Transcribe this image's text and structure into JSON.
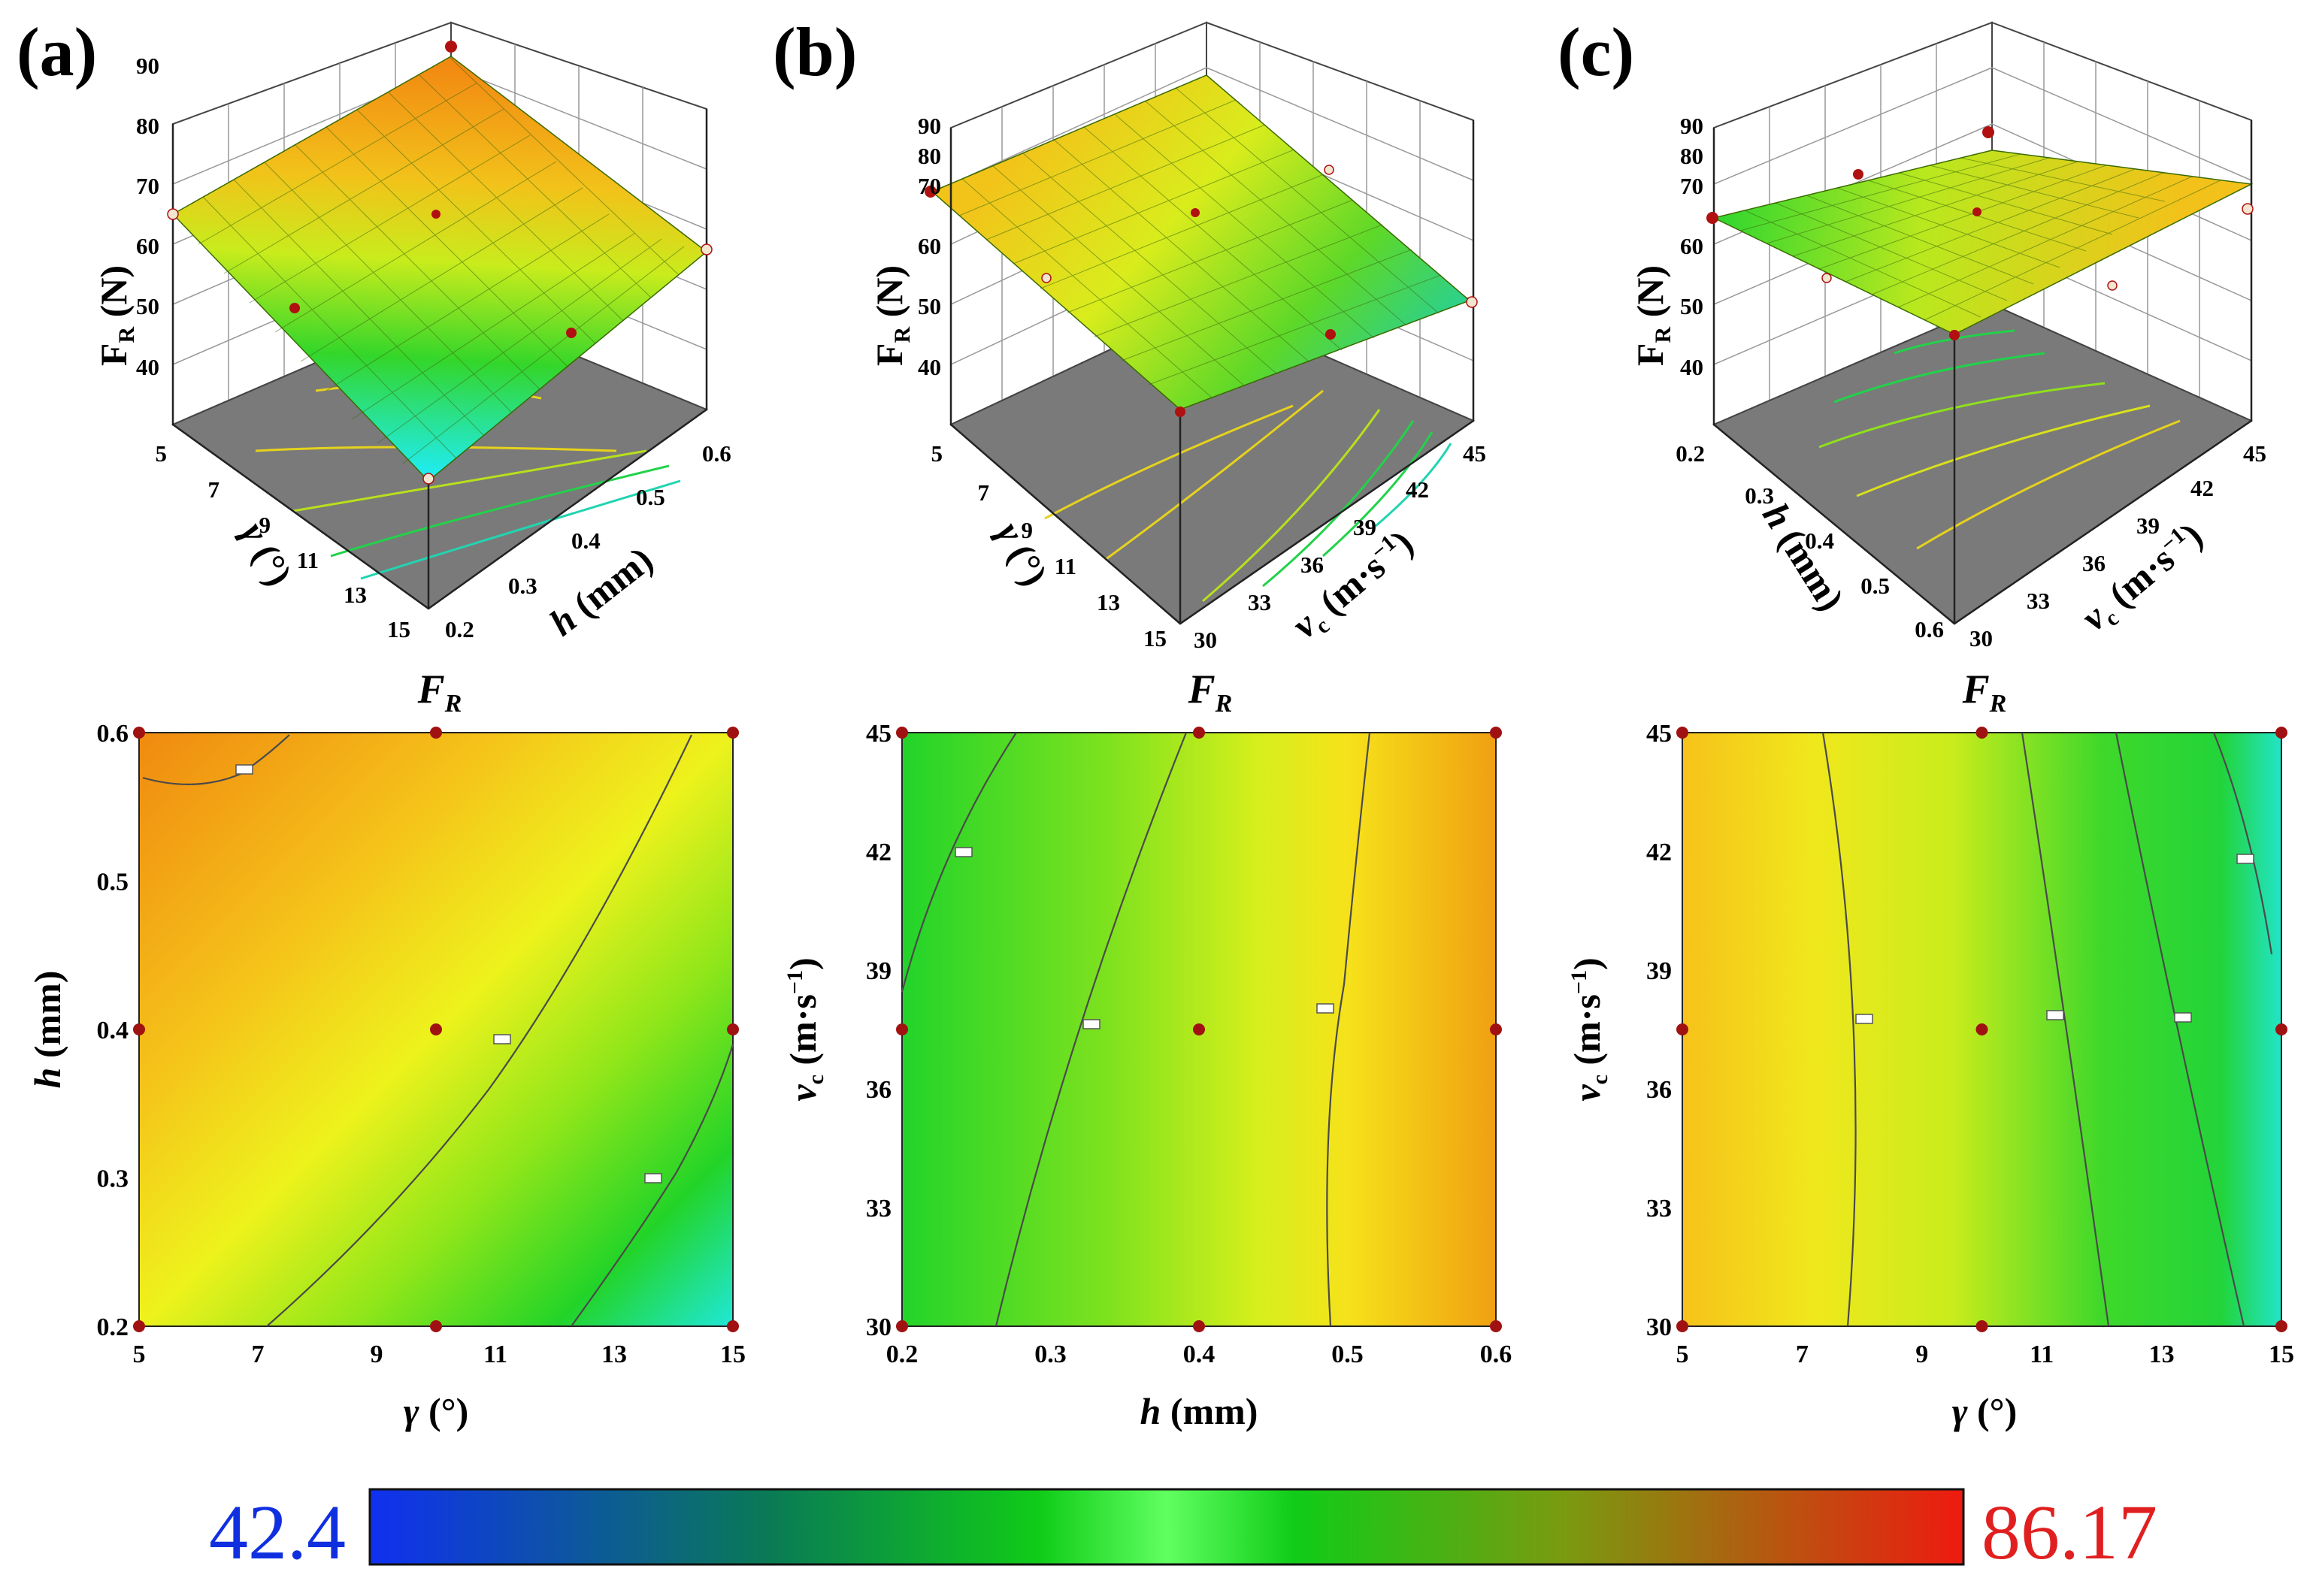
{
  "figure": {
    "panels": [
      {
        "tag": "(a)",
        "x_label_sym": "γ",
        "x_label_unit": " (°)",
        "y_label_sym": "h",
        "y_label_unit": " (mm)"
      },
      {
        "tag": "(b)",
        "x_label_sym": "h",
        "x_label_unit": " (mm)",
        "y_label_sym": "v",
        "y_label_sub": "c",
        "y_label_unit": " (m·s",
        "y_label_sup": "−1",
        "y_label_close": ")"
      },
      {
        "tag": "(c)",
        "x_label_sym": "γ",
        "x_label_unit": " (°)",
        "y_label_sym": "v",
        "y_label_sub": "c",
        "y_label_unit": " (m·s",
        "y_label_sup": "−1",
        "y_label_close": ")"
      }
    ],
    "response_label": {
      "main": "F",
      "sub": "R",
      "unit": " (N)"
    },
    "colorbar": {
      "min_label": "42.4",
      "max_label": "86.17",
      "min_color": "#1030e0",
      "max_color": "#e02020"
    }
  },
  "chart_data": [
    {
      "type": "surface",
      "panel": "(a)",
      "xlabel": "γ (°)",
      "ylabel": "h (mm)",
      "zlabel": "F_R (N)",
      "x_ticks": [
        5,
        7,
        9,
        11,
        13,
        15
      ],
      "y_ticks": [
        0.2,
        0.3,
        0.4,
        0.5,
        0.6
      ],
      "z_ticks": [
        40,
        50,
        60,
        70,
        80,
        90
      ],
      "xlim": [
        5,
        15
      ],
      "ylim": [
        0.2,
        0.6
      ],
      "zlim": [
        40,
        90
      ],
      "corner_values": {
        "g5_h0.2": 70,
        "g5_h0.6": 84,
        "g15_h0.2": 42,
        "g15_h0.6": 68
      }
    },
    {
      "type": "surface",
      "panel": "(b)",
      "xlabel": "γ (°)",
      "ylabel": "v_c (m·s⁻¹)",
      "zlabel": "F_R (N)",
      "x_ticks": [
        5,
        7,
        9,
        11,
        13,
        15
      ],
      "y_ticks": [
        30,
        33,
        36,
        39,
        42,
        45
      ],
      "z_ticks": [
        40,
        50,
        60,
        70,
        80,
        90
      ],
      "xlim": [
        5,
        15
      ],
      "ylim": [
        30,
        45
      ],
      "zlim": [
        40,
        90
      ]
    },
    {
      "type": "surface",
      "panel": "(c)",
      "xlabel": "h (mm)",
      "ylabel": "v_c (m·s⁻¹)",
      "zlabel": "F_R (N)",
      "x_ticks": [
        0.2,
        0.3,
        0.4,
        0.5,
        0.6
      ],
      "y_ticks": [
        30,
        33,
        36,
        39,
        42,
        45
      ],
      "z_ticks": [
        40,
        50,
        60,
        70,
        80,
        90
      ],
      "xlim": [
        0.2,
        0.6
      ],
      "ylim": [
        30,
        45
      ],
      "zlim": [
        40,
        90
      ]
    },
    {
      "type": "heatmap",
      "panel": "(a)",
      "title": "F_R",
      "xlabel": "γ (°)",
      "ylabel": "h (mm)",
      "x_ticks": [
        5,
        7,
        9,
        11,
        13,
        15
      ],
      "y_ticks": [
        0.2,
        0.3,
        0.4,
        0.5,
        0.6
      ],
      "xlim": [
        5,
        15
      ],
      "ylim": [
        0.2,
        0.6
      ],
      "design_points": [
        [
          5,
          0.2
        ],
        [
          10,
          0.2
        ],
        [
          15,
          0.2
        ],
        [
          5,
          0.4
        ],
        [
          10,
          0.4
        ],
        [
          15,
          0.4
        ],
        [
          5,
          0.6
        ],
        [
          10,
          0.6
        ],
        [
          15,
          0.6
        ]
      ]
    },
    {
      "type": "heatmap",
      "panel": "(b)",
      "title": "F_R",
      "xlabel": "h (mm)",
      "ylabel": "v_c (m·s⁻¹)",
      "x_ticks": [
        0.2,
        0.3,
        0.4,
        0.5,
        0.6
      ],
      "y_ticks": [
        30,
        33,
        36,
        39,
        42,
        45
      ],
      "xlim": [
        0.2,
        0.6
      ],
      "ylim": [
        30,
        45
      ],
      "design_points": [
        [
          0.2,
          30
        ],
        [
          0.4,
          30
        ],
        [
          0.6,
          30
        ],
        [
          0.2,
          37.5
        ],
        [
          0.4,
          37.5
        ],
        [
          0.6,
          37.5
        ],
        [
          0.2,
          45
        ],
        [
          0.4,
          45
        ],
        [
          0.6,
          45
        ]
      ]
    },
    {
      "type": "heatmap",
      "panel": "(c)",
      "title": "F_R",
      "xlabel": "γ (°)",
      "ylabel": "v_c (m·s⁻¹)",
      "x_ticks": [
        5,
        7,
        9,
        11,
        13,
        15
      ],
      "y_ticks": [
        30,
        33,
        36,
        39,
        42,
        45
      ],
      "xlim": [
        5,
        15
      ],
      "ylim": [
        30,
        45
      ],
      "design_points": [
        [
          5,
          30
        ],
        [
          10,
          30
        ],
        [
          15,
          30
        ],
        [
          5,
          37.5
        ],
        [
          10,
          37.5
        ],
        [
          15,
          37.5
        ],
        [
          5,
          45
        ],
        [
          10,
          45
        ],
        [
          15,
          45
        ]
      ]
    },
    {
      "type": "colorbar",
      "min": 42.4,
      "max": 86.17
    }
  ]
}
